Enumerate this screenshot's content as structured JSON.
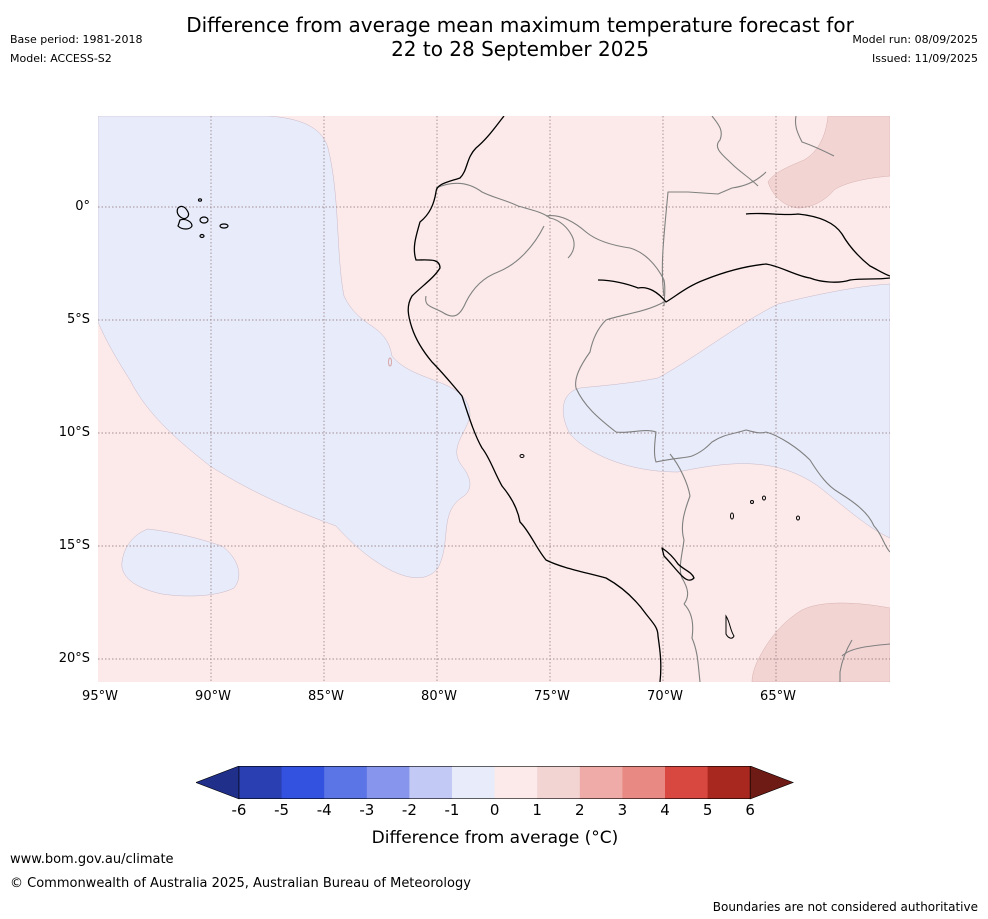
{
  "header": {
    "title_line1": "Difference from average mean maximum temperature forecast for",
    "title_line2": "22 to 28 September 2025",
    "base_period": "Base period: 1981-2018",
    "model": "Model: ACCESS-S2",
    "model_run": "Model run: 08/09/2025",
    "issued": "Issued: 11/09/2025"
  },
  "map": {
    "region": "Western South America and eastern Pacific",
    "lat_labels": [
      "0°",
      "5°S",
      "10°S",
      "15°S",
      "20°S"
    ],
    "lon_labels": [
      "95°W",
      "90°W",
      "85°W",
      "80°W",
      "75°W",
      "70°W",
      "65°W"
    ],
    "colors": {
      "anomaly_minus1_0": "#e8ebfa",
      "anomaly_0_1": "#fbeae9",
      "anomaly_1_2": "#f2d4d3",
      "coastline": "#000000",
      "borders": "#808080",
      "gridline": "#8a7070"
    }
  },
  "colorbar": {
    "ticks": [
      "-6",
      "-5",
      "-4",
      "-3",
      "-2",
      "-1",
      "0",
      "1",
      "2",
      "3",
      "4",
      "5",
      "6"
    ],
    "colors": [
      "#1f2f8a",
      "#2a40b2",
      "#3352e0",
      "#5b74e6",
      "#8796ec",
      "#c2c9f4",
      "#e8ebfa",
      "#fbeae9",
      "#f2d4d3",
      "#eeaba7",
      "#e88a83",
      "#d94840",
      "#a8281f",
      "#6e1a15"
    ],
    "label": "Difference from average (°C)"
  },
  "footer": {
    "url": "www.bom.gov.au/climate",
    "copyright": "© Commonwealth of Australia 2025, Australian Bureau of Meteorology",
    "disclaimer": "Boundaries are not considered authoritative"
  }
}
